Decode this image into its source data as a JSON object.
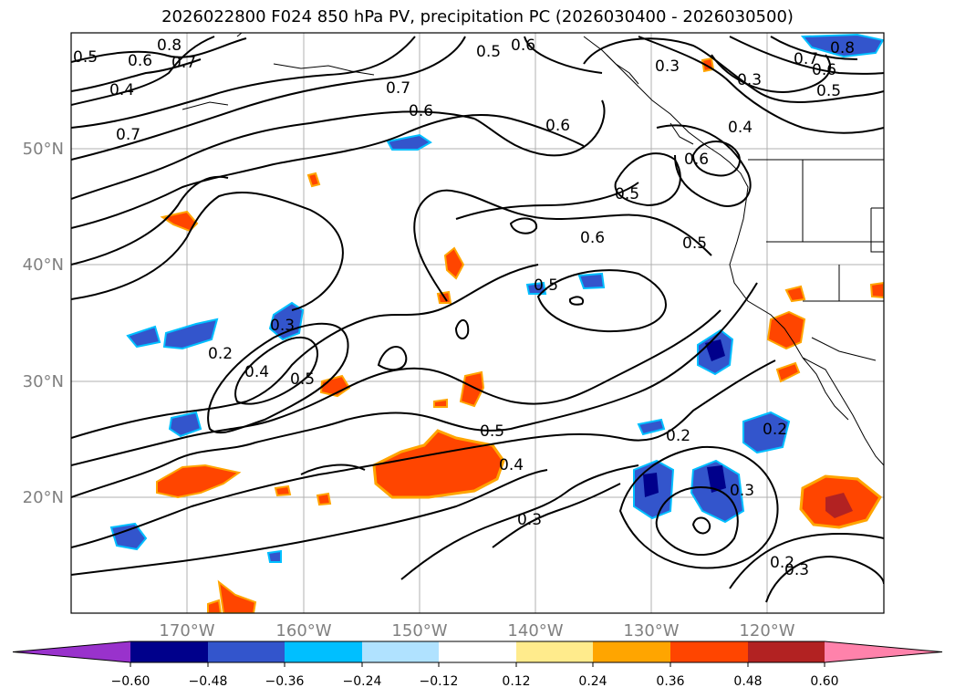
{
  "title": "2026022800 F024 850 hPa PV, precipitation PC (2026030400 - 2026030500)",
  "map": {
    "lat_labels": [
      "50°N",
      "40°N",
      "30°N",
      "20°N"
    ],
    "lon_labels": [
      "170°W",
      "160°W",
      "150°W",
      "140°W",
      "130°W",
      "120°W"
    ],
    "contour_labels": [
      "0.8",
      "0.5",
      "0.6",
      "0.7",
      "0.4",
      "0.7",
      "0.6",
      "0.7",
      "0.5",
      "0.6",
      "0.3",
      "0.3",
      "0.8",
      "0.7",
      "0.6",
      "0.5",
      "0.6",
      "0.4",
      "0.6",
      "0.5",
      "0.5",
      "0.6",
      "0.5",
      "0.5",
      "0.3",
      "0.2",
      "0.4",
      "0.5",
      "0.4",
      "0.3",
      "0.2",
      "0.2",
      "0.3",
      "0.3",
      "0.2"
    ]
  },
  "colorbar": {
    "tick_labels": [
      "−0.60",
      "−0.48",
      "−0.36",
      "−0.24",
      "−0.12",
      "0.12",
      "0.24",
      "0.36",
      "0.48",
      "0.60"
    ],
    "colors": [
      "#9932cc",
      "#00008b",
      "#3355cc",
      "#00bfff",
      "#b0e2ff",
      "#ffffff",
      "#ffeb8c",
      "#ffa500",
      "#ff4500",
      "#b22222",
      "#ff82ab"
    ]
  }
}
